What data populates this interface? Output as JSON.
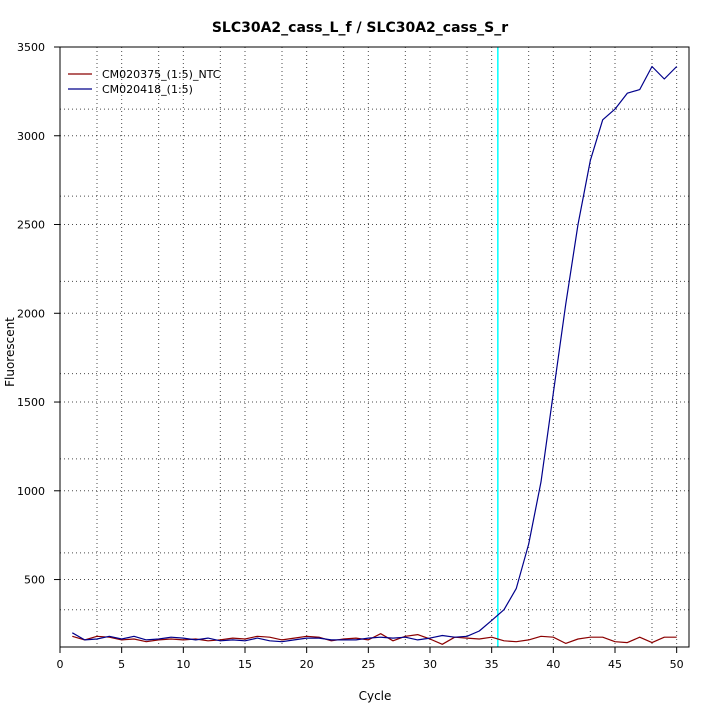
{
  "chart_data": {
    "type": "line",
    "title": "SLC30A2_cass_L_f / SLC30A2_cass_S_r",
    "xlabel": "Cycle",
    "ylabel": "Fluorescent",
    "xlim": [
      0,
      51
    ],
    "ylim": [
      120,
      3500
    ],
    "x_ticks": [
      0,
      5,
      10,
      15,
      20,
      25,
      30,
      35,
      40,
      45,
      50
    ],
    "x_minor_grid": [
      3,
      8,
      13,
      18,
      23,
      28,
      33,
      38,
      43,
      48
    ],
    "y_ticks": [
      500,
      1000,
      1500,
      2000,
      2500,
      3000,
      3500
    ],
    "y_grid": [
      330,
      500,
      650,
      1000,
      1180,
      1500,
      1660,
      2000,
      2180,
      2500,
      2660,
      3000,
      3150,
      3500
    ],
    "grid": true,
    "legend_position": "top-left",
    "threshold": {
      "x": 35.5,
      "color": "#00ffff"
    },
    "x": [
      1,
      2,
      3,
      4,
      5,
      6,
      7,
      8,
      9,
      10,
      11,
      12,
      13,
      14,
      15,
      16,
      17,
      18,
      19,
      20,
      21,
      22,
      23,
      24,
      25,
      26,
      27,
      28,
      29,
      30,
      31,
      32,
      33,
      34,
      35,
      36,
      37,
      38,
      39,
      40,
      41,
      42,
      43,
      44,
      45,
      46,
      47,
      48,
      49,
      50
    ],
    "series": [
      {
        "name": "CM020375_(1:5)_NTC",
        "color": "#8b0000",
        "values": [
          180,
          160,
          180,
          175,
          160,
          165,
          150,
          160,
          165,
          160,
          165,
          155,
          160,
          170,
          165,
          180,
          175,
          160,
          170,
          180,
          175,
          155,
          165,
          170,
          160,
          195,
          155,
          180,
          190,
          165,
          135,
          175,
          170,
          165,
          175,
          155,
          150,
          160,
          180,
          175,
          140,
          165,
          175,
          175,
          150,
          145,
          175,
          145,
          175,
          175
        ]
      },
      {
        "name": "CM020418_(1:5)",
        "color": "#00008b",
        "values": [
          200,
          160,
          165,
          180,
          165,
          180,
          160,
          165,
          175,
          170,
          160,
          170,
          155,
          160,
          155,
          170,
          155,
          150,
          160,
          170,
          170,
          160,
          160,
          160,
          170,
          175,
          170,
          175,
          160,
          170,
          185,
          175,
          180,
          210,
          270,
          330,
          450,
          700,
          1050,
          1550,
          2050,
          2500,
          2860,
          3090,
          3150,
          3240,
          3260,
          3390,
          3320,
          3390
        ]
      }
    ]
  }
}
